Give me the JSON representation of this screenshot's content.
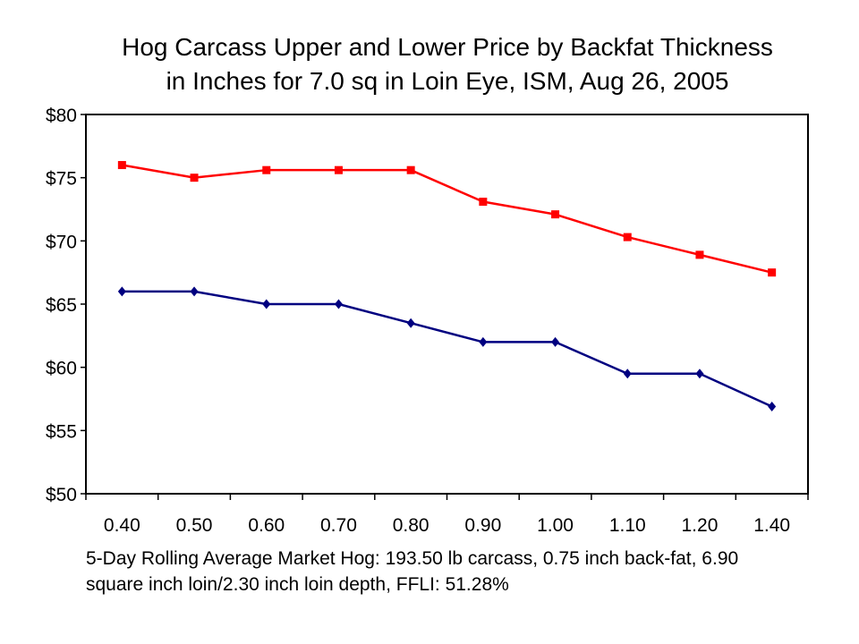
{
  "chart_data": {
    "type": "line",
    "title_lines": [
      "Hog Carcass Upper and Lower Price by Backfat Thickness",
      "in Inches for 7.0 sq in Loin Eye, ISM, Aug 26, 2005"
    ],
    "categories": [
      "0.40",
      "0.50",
      "0.60",
      "0.70",
      "0.80",
      "0.90",
      "1.00",
      "1.10",
      "1.20",
      "1.40"
    ],
    "y_ticks": [
      "$80",
      "$75",
      "$70",
      "$65",
      "$60",
      "$55",
      "$50"
    ],
    "ylim": [
      50,
      80
    ],
    "y_step": 5,
    "grid": false,
    "legend": "none",
    "series": [
      {
        "values": [
          76.0,
          75.0,
          75.6,
          75.6,
          75.6,
          73.1,
          72.1,
          70.3,
          68.9,
          67.5
        ],
        "color": "#ff0000",
        "marker": "square"
      },
      {
        "values": [
          66.0,
          66.0,
          65.0,
          65.0,
          63.5,
          62.0,
          62.0,
          59.5,
          59.5,
          56.9
        ],
        "color": "#000080",
        "marker": "diamond"
      }
    ],
    "footnote_lines": [
      "5-Day Rolling Average Market Hog: 193.50 lb carcass, 0.75 inch back-fat, 6.90",
      "square inch loin/2.30 inch loin depth, FFLI: 51.28%"
    ]
  }
}
